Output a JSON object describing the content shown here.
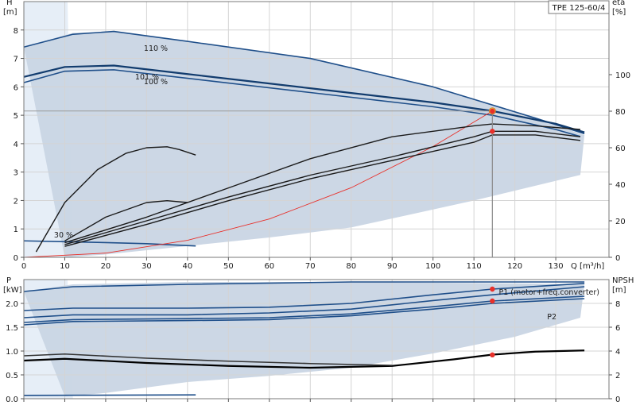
{
  "chart_data": [
    {
      "type": "line",
      "title": "TPE 125-60/4",
      "ylabel": "H",
      "yunit": "[m]",
      "y2label": "eta",
      "y2unit": "[%]",
      "xlabel": "Q [m³/h]",
      "xlim": [
        0,
        143
      ],
      "ylim": [
        0,
        9
      ],
      "y2lim": [
        0,
        140
      ],
      "xticks": [
        0,
        10,
        20,
        30,
        40,
        50,
        60,
        70,
        80,
        90,
        100,
        110,
        120,
        130
      ],
      "yticks": [
        0,
        1,
        2,
        3,
        4,
        5,
        6,
        7,
        8
      ],
      "y2ticks": [
        0,
        20,
        40,
        60,
        80,
        100
      ],
      "grid": true,
      "curve_labels": [
        "110 %",
        "101 %",
        "100 %",
        "30 %"
      ],
      "operating_point": {
        "x": 114.5,
        "head": 5.15,
        "eta": [
          80,
          69
        ]
      },
      "envelope": [
        [
          0,
          7.4
        ],
        [
          12,
          7.9
        ],
        [
          22,
          7.95
        ],
        [
          40,
          7.6
        ],
        [
          70,
          7.0
        ],
        [
          100,
          6.0
        ],
        [
          125,
          4.9
        ],
        [
          137,
          4.3
        ],
        [
          136,
          2.9
        ],
        [
          110,
          2.0
        ],
        [
          80,
          1.05
        ],
        [
          60,
          0.7
        ],
        [
          40,
          0.4
        ],
        [
          20,
          0.1
        ],
        [
          10,
          0.0
        ]
      ],
      "series": [
        {
          "name": "110 %",
          "x": [
            0,
            12,
            22,
            40,
            70,
            100,
            125,
            137
          ],
          "values": [
            7.4,
            7.85,
            7.95,
            7.6,
            7.0,
            6.0,
            4.9,
            4.35
          ],
          "color": "#1f4f8a"
        },
        {
          "name": "101 %",
          "x": [
            0,
            10,
            22,
            40,
            70,
            100,
            114.5,
            130,
            137
          ],
          "values": [
            6.35,
            6.7,
            6.75,
            6.45,
            5.95,
            5.45,
            5.15,
            4.7,
            4.4
          ],
          "color": "#123c6e"
        },
        {
          "name": "100 %",
          "x": [
            0,
            10,
            22,
            40,
            70,
            100,
            114.5,
            130,
            136
          ],
          "values": [
            6.15,
            6.55,
            6.6,
            6.3,
            5.8,
            5.3,
            5.0,
            4.5,
            4.25
          ],
          "color": "#1f4f8a"
        },
        {
          "name": "30 %",
          "x": [
            0,
            10,
            20,
            30,
            42
          ],
          "values": [
            0.58,
            0.55,
            0.52,
            0.48,
            0.4
          ],
          "color": "#1f4f8a"
        },
        {
          "name": "",
          "x": [
            0,
            114.5
          ],
          "values": [
            5.15,
            5.15
          ],
          "color": "#9a9a9a"
        },
        {
          "name": "",
          "x": [
            0,
            20,
            40,
            60,
            80,
            100,
            114.5
          ],
          "values": [
            0,
            0.15,
            0.6,
            1.35,
            2.45,
            3.9,
            5.15
          ],
          "color": "#e8302a"
        },
        {
          "name": "",
          "axis": "y2",
          "x": [
            3,
            10,
            18,
            25,
            30,
            35,
            38,
            42
          ],
          "values": [
            3,
            30,
            48,
            57,
            60,
            60.5,
            59,
            56
          ],
          "color": "#1a1a1a"
        },
        {
          "name": "",
          "axis": "y2",
          "x": [
            10,
            20,
            30,
            35,
            40
          ],
          "values": [
            9,
            22,
            30,
            31,
            30
          ],
          "color": "#1a1a1a"
        },
        {
          "name": "",
          "axis": "y2",
          "x": [
            10,
            30,
            50,
            70,
            90,
            110,
            114.5,
            125,
            136
          ],
          "values": [
            8,
            22,
            38,
            54,
            66,
            72,
            73,
            72,
            70
          ],
          "color": "#1a1a1a"
        },
        {
          "name": "",
          "axis": "y2",
          "x": [
            10,
            30,
            50,
            70,
            90,
            110,
            114.5,
            125,
            136
          ],
          "values": [
            7,
            20,
            33,
            45,
            55,
            66,
            69,
            69,
            66
          ],
          "color": "#1a1a1a"
        },
        {
          "name": "",
          "axis": "y2",
          "x": [
            10,
            30,
            50,
            70,
            90,
            110,
            114.5,
            125,
            136
          ],
          "values": [
            6,
            18,
            31,
            43,
            53,
            63,
            67,
            67,
            64
          ],
          "color": "#1a1a1a"
        }
      ]
    },
    {
      "type": "line",
      "ylabel": "P",
      "yunit": "[kW]",
      "y2label": "NPSH",
      "y2unit": "[m]",
      "xlim": [
        0,
        143
      ],
      "ylim": [
        0,
        2.5
      ],
      "y2lim": [
        0,
        10
      ],
      "yticks": [
        0,
        0.5,
        1.0,
        1.5,
        2.0
      ],
      "ytick_labels": [
        "0.0",
        "0.5",
        "1.0",
        "1.5",
        "2.0"
      ],
      "y2ticks": [
        0,
        2,
        4,
        6,
        8
      ],
      "grid": true,
      "legend": [
        "P1 (motor+freq.converter)",
        "P2"
      ],
      "operating_point": {
        "x": 114.5,
        "power": [
          2.3,
          2.05,
          0.92
        ]
      },
      "envelope": [
        [
          0,
          2.25
        ],
        [
          12,
          2.4
        ],
        [
          40,
          2.45
        ],
        [
          80,
          2.45
        ],
        [
          120,
          2.42
        ],
        [
          137,
          2.4
        ],
        [
          136,
          1.7
        ],
        [
          120,
          1.3
        ],
        [
          100,
          0.95
        ],
        [
          80,
          0.65
        ],
        [
          60,
          0.48
        ],
        [
          40,
          0.35
        ],
        [
          20,
          0.12
        ],
        [
          10,
          0.05
        ]
      ],
      "series": [
        {
          "name": "P1 (motor+freq.converter)",
          "x": [
            0,
            12,
            40,
            60,
            80,
            100,
            114.5,
            137
          ],
          "values": [
            1.85,
            1.9,
            1.9,
            1.92,
            2.0,
            2.18,
            2.3,
            2.42
          ],
          "color": "#1f4f8a"
        },
        {
          "name": "",
          "x": [
            0,
            12,
            40,
            60,
            80,
            100,
            114.5,
            137
          ],
          "values": [
            1.7,
            1.76,
            1.76,
            1.8,
            1.88,
            2.06,
            2.18,
            2.35
          ],
          "color": "#1f4f8a"
        },
        {
          "name": "P2",
          "x": [
            0,
            12,
            40,
            60,
            80,
            100,
            114.5,
            137
          ],
          "values": [
            1.6,
            1.66,
            1.68,
            1.7,
            1.78,
            1.93,
            2.05,
            2.15
          ],
          "color": "#1f4f8a"
        },
        {
          "name": "",
          "x": [
            0,
            12,
            40,
            60,
            80,
            100,
            114.5,
            137
          ],
          "values": [
            1.55,
            1.62,
            1.64,
            1.66,
            1.74,
            1.88,
            2.0,
            2.1
          ],
          "color": "#1f4f8a"
        },
        {
          "name": "",
          "x": [
            0,
            12,
            40,
            80,
            120,
            137
          ],
          "values": [
            2.25,
            2.35,
            2.4,
            2.45,
            2.45,
            2.45
          ],
          "color": "#1f4f8a"
        },
        {
          "name": "",
          "x": [
            0,
            42
          ],
          "values": [
            0.07,
            0.08
          ],
          "color": "#1f4f8a"
        },
        {
          "name": "",
          "axis": "y2",
          "x": [
            0,
            10,
            30,
            50,
            70,
            90,
            105,
            114.5,
            125,
            137
          ],
          "values": [
            3.2,
            3.35,
            3.0,
            2.75,
            2.6,
            2.75,
            3.3,
            3.7,
            3.95,
            4.05
          ],
          "color": "#000000"
        },
        {
          "name": "",
          "axis": "y2",
          "x": [
            0,
            10,
            30,
            50,
            70,
            90
          ],
          "values": [
            3.6,
            3.75,
            3.4,
            3.15,
            2.95,
            2.8
          ],
          "color": "#333333"
        }
      ]
    }
  ]
}
